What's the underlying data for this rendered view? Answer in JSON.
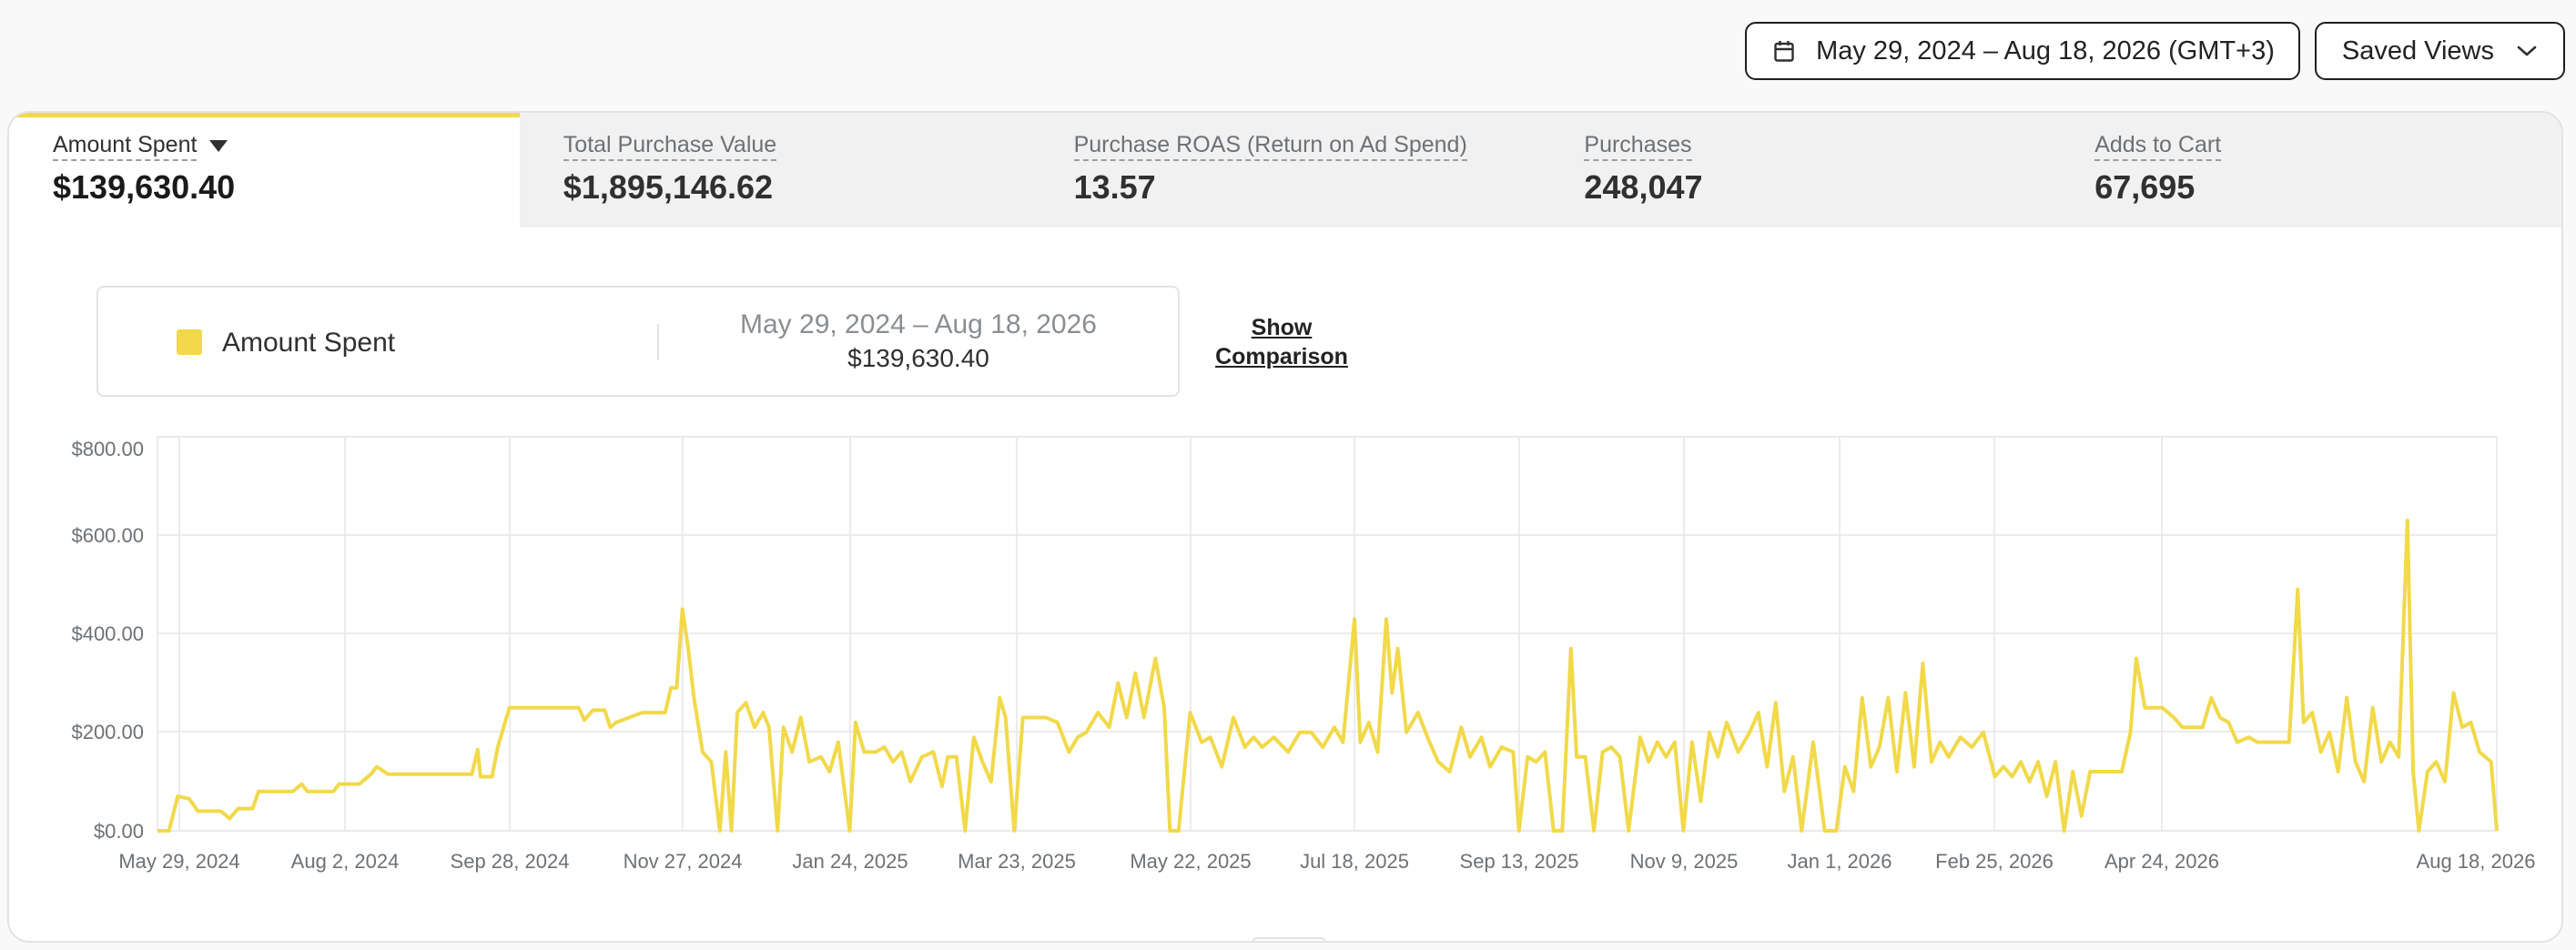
{
  "toolbar": {
    "date_range": "May 29, 2024 – Aug 18, 2026 (GMT+3)",
    "saved_views": "Saved Views",
    "calendar_icon": "calendar-icon",
    "chevron_icon": "chevron-down-icon"
  },
  "metrics": [
    {
      "label": "Amount Spent",
      "value": "$139,630.40",
      "active": true
    },
    {
      "label": "Total Purchase Value",
      "value": "$1,895,146.62"
    },
    {
      "label": "Purchase ROAS (Return on Ad Spend)",
      "value": "13.57"
    },
    {
      "label": "Purchases",
      "value": "248,047"
    },
    {
      "label": "Adds to Cart",
      "value": "67,695"
    }
  ],
  "legend": {
    "name": "Amount Spent",
    "range": "May 29, 2024 – Aug 18, 2026",
    "total": "$139,630.40",
    "color": "#f1d94a"
  },
  "comparison_label_1": "Show",
  "comparison_label_2": "Comparison",
  "chart_data": {
    "type": "line",
    "ylim": [
      0,
      800
    ],
    "y_ticks": [
      "$0.00",
      "$200.00",
      "$400.00",
      "$600.00",
      "$800.00"
    ],
    "x_ticks": [
      "May 29, 2024",
      "Aug 2, 2024",
      "Sep 28, 2024",
      "Nov 27, 2024",
      "Jan 24, 2025",
      "Mar 23, 2025",
      "May 22, 2025",
      "Jul 18, 2025",
      "Sep 13, 2025",
      "Nov 9, 2025",
      "Jan 1, 2026",
      "Feb 25, 2026",
      "Apr 24, 2026",
      "Aug 18, 2026"
    ],
    "grid": true,
    "color": "#f1d94a",
    "series": [
      {
        "name": "Amount Spent",
        "points": [
          [
            "2024-05-29",
            0
          ],
          [
            "2024-06-02",
            0
          ],
          [
            "2024-06-05",
            70
          ],
          [
            "2024-06-09",
            65
          ],
          [
            "2024-06-12",
            40
          ],
          [
            "2024-06-20",
            40
          ],
          [
            "2024-06-23",
            25
          ],
          [
            "2024-06-26",
            45
          ],
          [
            "2024-07-01",
            45
          ],
          [
            "2024-07-03",
            80
          ],
          [
            "2024-07-15",
            80
          ],
          [
            "2024-07-18",
            95
          ],
          [
            "2024-07-20",
            80
          ],
          [
            "2024-07-29",
            80
          ],
          [
            "2024-07-31",
            95
          ],
          [
            "2024-08-07",
            95
          ],
          [
            "2024-08-11",
            115
          ],
          [
            "2024-08-13",
            130
          ],
          [
            "2024-08-17",
            115
          ],
          [
            "2024-09-15",
            115
          ],
          [
            "2024-09-17",
            165
          ],
          [
            "2024-09-18",
            110
          ],
          [
            "2024-09-22",
            110
          ],
          [
            "2024-09-24",
            170
          ],
          [
            "2024-09-28",
            250
          ],
          [
            "2024-10-22",
            250
          ],
          [
            "2024-10-24",
            225
          ],
          [
            "2024-10-27",
            245
          ],
          [
            "2024-10-31",
            245
          ],
          [
            "2024-11-02",
            210
          ],
          [
            "2024-11-04",
            220
          ],
          [
            "2024-11-13",
            240
          ],
          [
            "2024-11-21",
            240
          ],
          [
            "2024-11-23",
            290
          ],
          [
            "2024-11-25",
            290
          ],
          [
            "2024-11-27",
            450
          ],
          [
            "2024-11-29",
            370
          ],
          [
            "2024-12-01",
            270
          ],
          [
            "2024-12-04",
            160
          ],
          [
            "2024-12-07",
            140
          ],
          [
            "2024-12-10",
            0
          ],
          [
            "2024-12-12",
            160
          ],
          [
            "2024-12-14",
            0
          ],
          [
            "2024-12-16",
            240
          ],
          [
            "2024-12-19",
            260
          ],
          [
            "2024-12-22",
            210
          ],
          [
            "2024-12-25",
            240
          ],
          [
            "2024-12-27",
            210
          ],
          [
            "2024-12-30",
            0
          ],
          [
            "2025-01-01",
            210
          ],
          [
            "2025-01-04",
            160
          ],
          [
            "2025-01-07",
            230
          ],
          [
            "2025-01-10",
            140
          ],
          [
            "2025-01-14",
            150
          ],
          [
            "2025-01-17",
            120
          ],
          [
            "2025-01-20",
            180
          ],
          [
            "2025-01-24",
            0
          ],
          [
            "2025-01-26",
            220
          ],
          [
            "2025-01-29",
            160
          ],
          [
            "2025-02-02",
            160
          ],
          [
            "2025-02-05",
            170
          ],
          [
            "2025-02-08",
            140
          ],
          [
            "2025-02-11",
            160
          ],
          [
            "2025-02-14",
            100
          ],
          [
            "2025-02-18",
            150
          ],
          [
            "2025-02-22",
            160
          ],
          [
            "2025-02-25",
            90
          ],
          [
            "2025-02-27",
            150
          ],
          [
            "2025-03-02",
            150
          ],
          [
            "2025-03-05",
            0
          ],
          [
            "2025-03-08",
            190
          ],
          [
            "2025-03-11",
            140
          ],
          [
            "2025-03-14",
            100
          ],
          [
            "2025-03-17",
            270
          ],
          [
            "2025-03-19",
            230
          ],
          [
            "2025-03-22",
            0
          ],
          [
            "2025-03-25",
            230
          ],
          [
            "2025-04-02",
            230
          ],
          [
            "2025-04-06",
            220
          ],
          [
            "2025-04-10",
            160
          ],
          [
            "2025-04-13",
            190
          ],
          [
            "2025-04-16",
            200
          ],
          [
            "2025-04-20",
            240
          ],
          [
            "2025-04-24",
            210
          ],
          [
            "2025-04-27",
            300
          ],
          [
            "2025-04-30",
            230
          ],
          [
            "2025-05-03",
            320
          ],
          [
            "2025-05-06",
            230
          ],
          [
            "2025-05-10",
            350
          ],
          [
            "2025-05-13",
            250
          ],
          [
            "2025-05-15",
            0
          ],
          [
            "2025-05-18",
            0
          ],
          [
            "2025-05-22",
            240
          ],
          [
            "2025-05-26",
            180
          ],
          [
            "2025-05-29",
            190
          ],
          [
            "2025-06-02",
            130
          ],
          [
            "2025-06-06",
            230
          ],
          [
            "2025-06-10",
            170
          ],
          [
            "2025-06-13",
            190
          ],
          [
            "2025-06-16",
            170
          ],
          [
            "2025-06-20",
            190
          ],
          [
            "2025-06-25",
            160
          ],
          [
            "2025-06-29",
            200
          ],
          [
            "2025-07-03",
            200
          ],
          [
            "2025-07-07",
            170
          ],
          [
            "2025-07-11",
            210
          ],
          [
            "2025-07-14",
            180
          ],
          [
            "2025-07-18",
            430
          ],
          [
            "2025-07-20",
            180
          ],
          [
            "2025-07-23",
            220
          ],
          [
            "2025-07-26",
            160
          ],
          [
            "2025-07-29",
            430
          ],
          [
            "2025-07-31",
            280
          ],
          [
            "2025-08-02",
            370
          ],
          [
            "2025-08-05",
            200
          ],
          [
            "2025-08-09",
            240
          ],
          [
            "2025-08-13",
            180
          ],
          [
            "2025-08-16",
            140
          ],
          [
            "2025-08-20",
            120
          ],
          [
            "2025-08-24",
            210
          ],
          [
            "2025-08-27",
            150
          ],
          [
            "2025-08-31",
            190
          ],
          [
            "2025-09-03",
            130
          ],
          [
            "2025-09-07",
            170
          ],
          [
            "2025-09-11",
            160
          ],
          [
            "2025-09-13",
            0
          ],
          [
            "2025-09-16",
            150
          ],
          [
            "2025-09-19",
            140
          ],
          [
            "2025-09-22",
            160
          ],
          [
            "2025-09-25",
            0
          ],
          [
            "2025-09-28",
            0
          ],
          [
            "2025-10-01",
            370
          ],
          [
            "2025-10-03",
            150
          ],
          [
            "2025-10-06",
            150
          ],
          [
            "2025-10-09",
            0
          ],
          [
            "2025-10-12",
            160
          ],
          [
            "2025-10-15",
            170
          ],
          [
            "2025-10-18",
            150
          ],
          [
            "2025-10-21",
            0
          ],
          [
            "2025-10-25",
            190
          ],
          [
            "2025-10-28",
            140
          ],
          [
            "2025-10-31",
            180
          ],
          [
            "2025-11-03",
            150
          ],
          [
            "2025-11-06",
            180
          ],
          [
            "2025-11-09",
            0
          ],
          [
            "2025-11-12",
            180
          ],
          [
            "2025-11-15",
            60
          ],
          [
            "2025-11-18",
            200
          ],
          [
            "2025-11-21",
            150
          ],
          [
            "2025-11-24",
            220
          ],
          [
            "2025-11-28",
            160
          ],
          [
            "2025-12-02",
            200
          ],
          [
            "2025-12-05",
            240
          ],
          [
            "2025-12-08",
            130
          ],
          [
            "2025-12-11",
            260
          ],
          [
            "2025-12-14",
            80
          ],
          [
            "2025-12-17",
            150
          ],
          [
            "2025-12-20",
            0
          ],
          [
            "2025-12-24",
            180
          ],
          [
            "2025-12-28",
            0
          ],
          [
            "2026-01-01",
            0
          ],
          [
            "2026-01-04",
            130
          ],
          [
            "2026-01-07",
            80
          ],
          [
            "2026-01-10",
            270
          ],
          [
            "2026-01-13",
            130
          ],
          [
            "2026-01-16",
            170
          ],
          [
            "2026-01-19",
            270
          ],
          [
            "2026-01-22",
            120
          ],
          [
            "2026-01-25",
            280
          ],
          [
            "2026-01-28",
            130
          ],
          [
            "2026-01-31",
            340
          ],
          [
            "2026-02-03",
            140
          ],
          [
            "2026-02-06",
            180
          ],
          [
            "2026-02-09",
            150
          ],
          [
            "2026-02-13",
            190
          ],
          [
            "2026-02-17",
            170
          ],
          [
            "2026-02-21",
            200
          ],
          [
            "2026-02-25",
            110
          ],
          [
            "2026-02-28",
            130
          ],
          [
            "2026-03-03",
            110
          ],
          [
            "2026-03-06",
            140
          ],
          [
            "2026-03-09",
            100
          ],
          [
            "2026-03-12",
            140
          ],
          [
            "2026-03-15",
            70
          ],
          [
            "2026-03-18",
            140
          ],
          [
            "2026-03-21",
            0
          ],
          [
            "2026-03-24",
            120
          ],
          [
            "2026-03-27",
            30
          ],
          [
            "2026-03-30",
            120
          ],
          [
            "2026-04-10",
            120
          ],
          [
            "2026-04-13",
            200
          ],
          [
            "2026-04-15",
            350
          ],
          [
            "2026-04-18",
            250
          ],
          [
            "2026-04-24",
            250
          ],
          [
            "2026-04-28",
            230
          ],
          [
            "2026-05-01",
            210
          ],
          [
            "2026-05-08",
            210
          ],
          [
            "2026-05-11",
            270
          ],
          [
            "2026-05-14",
            230
          ],
          [
            "2026-05-17",
            220
          ],
          [
            "2026-05-20",
            180
          ],
          [
            "2026-05-24",
            190
          ],
          [
            "2026-05-27",
            180
          ],
          [
            "2026-06-03",
            180
          ],
          [
            "2026-06-07",
            180
          ],
          [
            "2026-06-10",
            490
          ],
          [
            "2026-06-12",
            220
          ],
          [
            "2026-06-15",
            240
          ],
          [
            "2026-06-18",
            160
          ],
          [
            "2026-06-21",
            200
          ],
          [
            "2026-06-24",
            120
          ],
          [
            "2026-06-27",
            270
          ],
          [
            "2026-06-30",
            140
          ],
          [
            "2026-07-03",
            100
          ],
          [
            "2026-07-06",
            250
          ],
          [
            "2026-07-09",
            140
          ],
          [
            "2026-07-12",
            180
          ],
          [
            "2026-07-15",
            150
          ],
          [
            "2026-07-18",
            630
          ],
          [
            "2026-07-20",
            120
          ],
          [
            "2026-07-22",
            0
          ],
          [
            "2026-07-25",
            120
          ],
          [
            "2026-07-28",
            140
          ],
          [
            "2026-07-31",
            100
          ],
          [
            "2026-08-03",
            280
          ],
          [
            "2026-08-06",
            210
          ],
          [
            "2026-08-09",
            220
          ],
          [
            "2026-08-12",
            160
          ],
          [
            "2026-08-16",
            140
          ],
          [
            "2026-08-18",
            0
          ]
        ]
      }
    ]
  }
}
